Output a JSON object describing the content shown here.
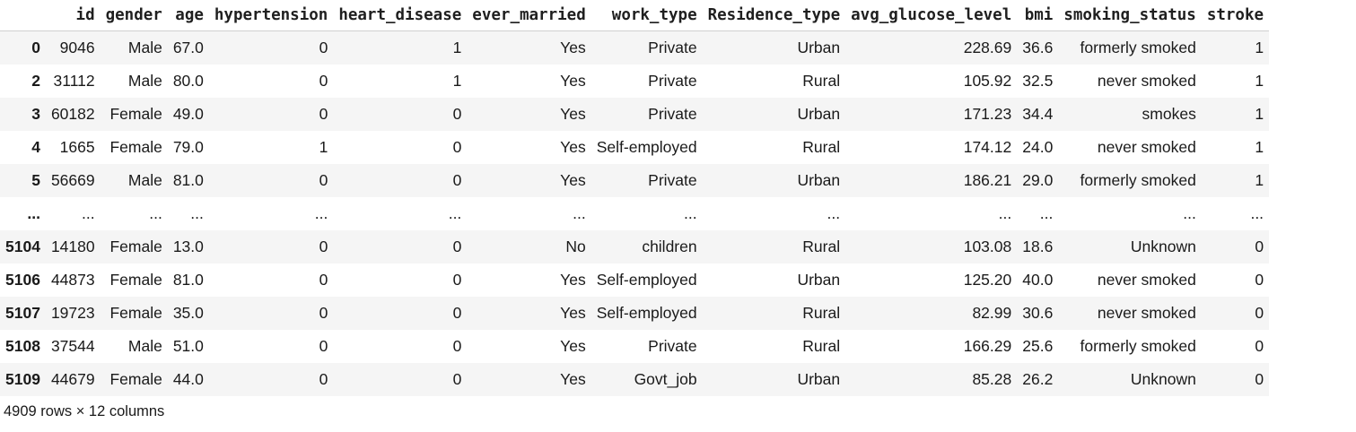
{
  "columns": [
    "",
    "id",
    "gender",
    "age",
    "hypertension",
    "heart_disease",
    "ever_married",
    "work_type",
    "Residence_type",
    "avg_glucose_level",
    "bmi",
    "smoking_status",
    "stroke"
  ],
  "rows": [
    {
      "index": "0",
      "cells": [
        "9046",
        "Male",
        "67.0",
        "0",
        "1",
        "Yes",
        "Private",
        "Urban",
        "228.69",
        "36.6",
        "formerly smoked",
        "1"
      ]
    },
    {
      "index": "2",
      "cells": [
        "31112",
        "Male",
        "80.0",
        "0",
        "1",
        "Yes",
        "Private",
        "Rural",
        "105.92",
        "32.5",
        "never smoked",
        "1"
      ]
    },
    {
      "index": "3",
      "cells": [
        "60182",
        "Female",
        "49.0",
        "0",
        "0",
        "Yes",
        "Private",
        "Urban",
        "171.23",
        "34.4",
        "smokes",
        "1"
      ]
    },
    {
      "index": "4",
      "cells": [
        "1665",
        "Female",
        "79.0",
        "1",
        "0",
        "Yes",
        "Self-employed",
        "Rural",
        "174.12",
        "24.0",
        "never smoked",
        "1"
      ]
    },
    {
      "index": "5",
      "cells": [
        "56669",
        "Male",
        "81.0",
        "0",
        "0",
        "Yes",
        "Private",
        "Urban",
        "186.21",
        "29.0",
        "formerly smoked",
        "1"
      ]
    },
    {
      "index": "...",
      "cells": [
        "...",
        "...",
        "...",
        "...",
        "...",
        "...",
        "...",
        "...",
        "...",
        "...",
        "...",
        "..."
      ]
    },
    {
      "index": "5104",
      "cells": [
        "14180",
        "Female",
        "13.0",
        "0",
        "0",
        "No",
        "children",
        "Rural",
        "103.08",
        "18.6",
        "Unknown",
        "0"
      ]
    },
    {
      "index": "5106",
      "cells": [
        "44873",
        "Female",
        "81.0",
        "0",
        "0",
        "Yes",
        "Self-employed",
        "Urban",
        "125.20",
        "40.0",
        "never smoked",
        "0"
      ]
    },
    {
      "index": "5107",
      "cells": [
        "19723",
        "Female",
        "35.0",
        "0",
        "0",
        "Yes",
        "Self-employed",
        "Rural",
        "82.99",
        "30.6",
        "never smoked",
        "0"
      ]
    },
    {
      "index": "5108",
      "cells": [
        "37544",
        "Male",
        "51.0",
        "0",
        "0",
        "Yes",
        "Private",
        "Rural",
        "166.29",
        "25.6",
        "formerly smoked",
        "0"
      ]
    },
    {
      "index": "5109",
      "cells": [
        "44679",
        "Female",
        "44.0",
        "0",
        "0",
        "Yes",
        "Govt_job",
        "Urban",
        "85.28",
        "26.2",
        "Unknown",
        "0"
      ]
    }
  ],
  "footer": "4909 rows × 12 columns"
}
